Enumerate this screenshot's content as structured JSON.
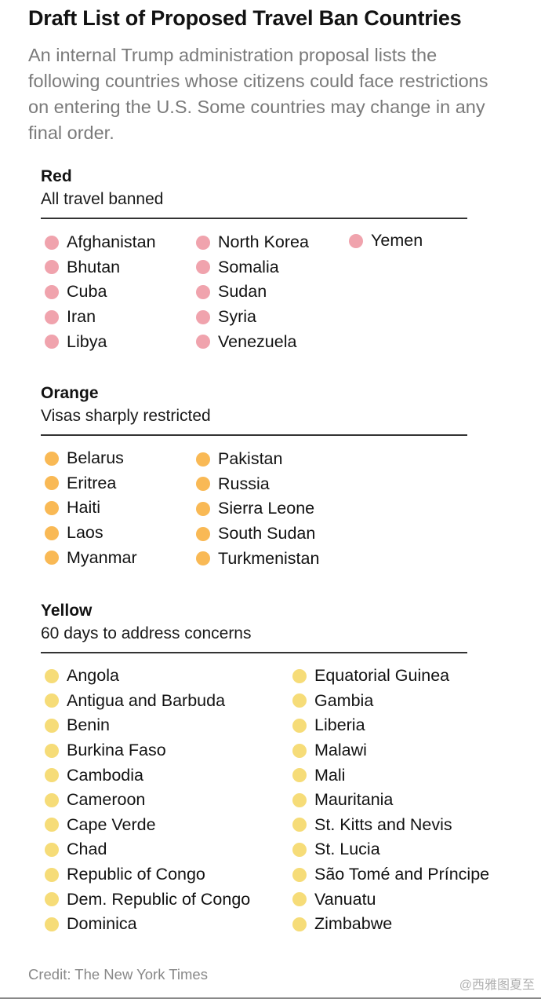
{
  "title": "Draft List of Proposed Travel Ban Countries",
  "description": "An internal Trump administration proposal lists the following countries whose citizens could face restrictions on entering the U.S. Some countries may change in any final order.",
  "sections": [
    {
      "name": "Red",
      "subtitle": "All travel banned",
      "color": "#f0a3ad",
      "columns": [
        [
          "Afghanistan",
          "Bhutan",
          "Cuba",
          "Iran",
          "Libya"
        ],
        [
          "North Korea",
          "Somalia",
          "Sudan",
          "Syria",
          "Venezuela"
        ],
        [
          "Yemen"
        ]
      ]
    },
    {
      "name": "Orange",
      "subtitle": "Visas sharply restricted",
      "color": "#f9b955",
      "columns": [
        [
          "Belarus",
          "Eritrea",
          "Haiti",
          "Laos",
          "Myanmar"
        ],
        [
          "Pakistan",
          "Russia",
          "Sierra Leone",
          "South Sudan",
          "Turkmenistan"
        ]
      ]
    },
    {
      "name": "Yellow",
      "subtitle": "60 days to address concerns",
      "color": "#f6dc78",
      "columns": [
        [
          "Angola",
          "Antigua and Barbuda",
          "Benin",
          "Burkina Faso",
          "Cambodia",
          "Cameroon",
          "Cape Verde",
          "Chad",
          "Republic of Congo",
          "Dem. Republic of Congo",
          "Dominica"
        ],
        [
          "Equatorial Guinea",
          "Gambia",
          "Liberia",
          "Malawi",
          "Mali",
          "Mauritania",
          "St. Kitts and Nevis",
          "St. Lucia",
          "São Tomé and Príncipe",
          "Vanuatu",
          "Zimbabwe"
        ]
      ]
    }
  ],
  "credit": "Credit: The New York Times",
  "watermark": "@西雅图夏至"
}
